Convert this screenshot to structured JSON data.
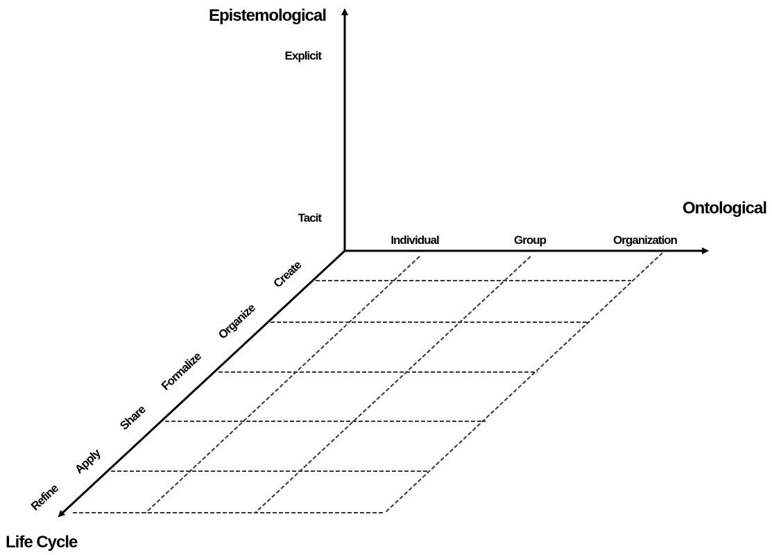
{
  "axes": {
    "epistemological": {
      "label": "Epistemological",
      "levels": [
        "Explicit",
        "Tacit"
      ]
    },
    "ontological": {
      "label": "Ontological",
      "levels": [
        "Individual",
        "Group",
        "Organization"
      ]
    },
    "life_cycle": {
      "label": "Life Cycle",
      "stages": [
        "Create",
        "Organize",
        "Formalize",
        "Share",
        "Apply",
        "Refine"
      ]
    }
  }
}
